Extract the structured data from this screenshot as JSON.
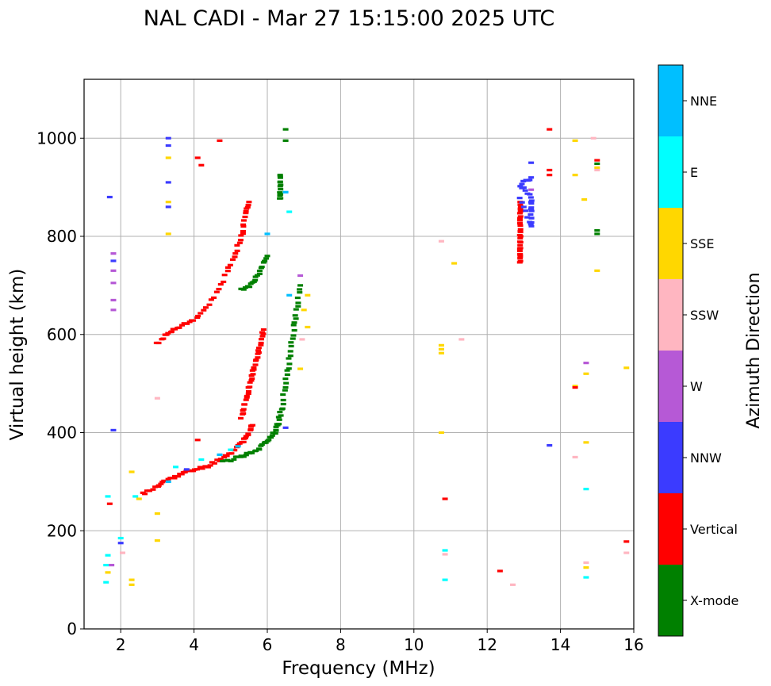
{
  "chart_data": {
    "type": "scatter",
    "title": "NAL CADI - Mar 27 15:15:00 2025 UTC",
    "xlabel": "Frequency (MHz)",
    "ylabel": "Virtual height (km)",
    "xlim": [
      1.0,
      16.0
    ],
    "ylim": [
      0,
      1120
    ],
    "xticks": [
      2,
      4,
      6,
      8,
      10,
      12,
      14,
      16
    ],
    "yticks": [
      0,
      200,
      400,
      600,
      800,
      1000
    ],
    "grid": true,
    "colorbar": {
      "label": "Azimuth Direction",
      "categories": [
        {
          "name": "X-mode",
          "color": "#008000"
        },
        {
          "name": "Vertical",
          "color": "#ff0000"
        },
        {
          "name": "NNW",
          "color": "#3b3bff"
        },
        {
          "name": "W",
          "color": "#b659d6"
        },
        {
          "name": "SSW",
          "color": "#ffb6c1"
        },
        {
          "name": "SSE",
          "color": "#ffd700"
        },
        {
          "name": "E",
          "color": "#00ffff"
        },
        {
          "name": "NNE",
          "color": "#00bfff"
        }
      ]
    },
    "traces": [
      {
        "name": "Vertical",
        "color": "#ff0000",
        "spread": 0.05,
        "x": [
          2.6,
          3.0,
          3.3,
          3.6,
          3.9,
          4.3,
          4.7,
          5.0,
          5.3,
          5.5,
          5.6
        ],
        "y": [
          275,
          290,
          305,
          315,
          322,
          330,
          345,
          360,
          380,
          400,
          415
        ]
      },
      {
        "name": "Vertical",
        "color": "#ff0000",
        "spread": 0.05,
        "x": [
          5.3,
          5.4,
          5.5,
          5.6,
          5.7,
          5.8,
          5.9
        ],
        "y": [
          430,
          460,
          490,
          520,
          550,
          580,
          610
        ]
      },
      {
        "name": "Vertical",
        "color": "#ff0000",
        "spread": 0.05,
        "x": [
          3.0,
          3.3,
          3.6,
          4.0,
          4.4,
          4.8,
          5.1,
          5.3,
          5.4,
          5.5
        ],
        "y": [
          580,
          605,
          615,
          630,
          660,
          710,
          760,
          800,
          840,
          870
        ]
      },
      {
        "name": "X-mode",
        "color": "#008000",
        "spread": 0.05,
        "x": [
          4.8,
          5.2,
          5.5,
          5.8,
          6.0,
          6.2,
          6.3,
          6.4,
          6.5,
          6.6,
          6.7,
          6.8,
          6.9
        ],
        "y": [
          340,
          350,
          358,
          368,
          385,
          400,
          420,
          450,
          500,
          550,
          600,
          650,
          700
        ]
      },
      {
        "name": "X-mode",
        "color": "#008000",
        "spread": 0.05,
        "x": [
          5.3,
          5.6,
          5.8,
          6.0
        ],
        "y": [
          690,
          705,
          730,
          760
        ]
      },
      {
        "name": "X-mode",
        "color": "#008000",
        "spread": 0.03,
        "x": [
          6.35,
          6.35,
          6.35
        ],
        "y": [
          875,
          900,
          925
        ]
      },
      {
        "name": "Vertical",
        "color": "#ff0000",
        "spread": 0.03,
        "x": [
          12.9,
          12.9,
          12.9,
          12.9,
          12.9,
          12.9
        ],
        "y": [
          745,
          770,
          795,
          820,
          845,
          870
        ]
      },
      {
        "name": "NNW",
        "color": "#3b3bff",
        "spread": 0.03,
        "x": [
          12.9,
          13.2,
          13.2,
          13.2,
          12.9,
          13.2
        ],
        "y": [
          880,
          820,
          850,
          880,
          905,
          920
        ]
      }
    ],
    "points": [
      {
        "name": "E",
        "x": 1.6,
        "y": 95
      },
      {
        "name": "E",
        "x": 1.6,
        "y": 130
      },
      {
        "name": "SSE",
        "x": 1.65,
        "y": 115
      },
      {
        "name": "E",
        "x": 1.65,
        "y": 150
      },
      {
        "name": "W",
        "x": 1.75,
        "y": 130
      },
      {
        "name": "E",
        "x": 1.65,
        "y": 270
      },
      {
        "name": "Vertical",
        "x": 1.7,
        "y": 255
      },
      {
        "name": "E",
        "x": 2.0,
        "y": 185
      },
      {
        "name": "NNW",
        "x": 2.0,
        "y": 175
      },
      {
        "name": "SSW",
        "x": 2.05,
        "y": 155
      },
      {
        "name": "SSE",
        "x": 2.3,
        "y": 90
      },
      {
        "name": "SSE",
        "x": 2.3,
        "y": 100
      },
      {
        "name": "SSE",
        "x": 2.3,
        "y": 320
      },
      {
        "name": "E",
        "x": 2.4,
        "y": 270
      },
      {
        "name": "SSE",
        "x": 2.5,
        "y": 265
      },
      {
        "name": "NNE",
        "x": 3.3,
        "y": 300
      },
      {
        "name": "E",
        "x": 3.5,
        "y": 330
      },
      {
        "name": "NNW",
        "x": 3.8,
        "y": 325
      },
      {
        "name": "E",
        "x": 4.2,
        "y": 345
      },
      {
        "name": "NNE",
        "x": 4.7,
        "y": 355
      },
      {
        "name": "E",
        "x": 5.0,
        "y": 365
      },
      {
        "name": "NNE",
        "x": 5.2,
        "y": 372
      },
      {
        "name": "Vertical",
        "x": 4.1,
        "y": 385
      },
      {
        "name": "SSW",
        "x": 3.0,
        "y": 470
      },
      {
        "name": "SSE",
        "x": 3.0,
        "y": 235
      },
      {
        "name": "SSE",
        "x": 3.0,
        "y": 180
      },
      {
        "name": "NNW",
        "x": 1.8,
        "y": 405
      },
      {
        "name": "W",
        "x": 1.8,
        "y": 650
      },
      {
        "name": "W",
        "x": 1.8,
        "y": 670
      },
      {
        "name": "W",
        "x": 1.8,
        "y": 705
      },
      {
        "name": "W",
        "x": 1.8,
        "y": 730
      },
      {
        "name": "NNW",
        "x": 1.8,
        "y": 750
      },
      {
        "name": "W",
        "x": 1.8,
        "y": 765
      },
      {
        "name": "NNW",
        "x": 1.7,
        "y": 880
      },
      {
        "name": "NNW",
        "x": 3.3,
        "y": 860
      },
      {
        "name": "SSE",
        "x": 3.3,
        "y": 870
      },
      {
        "name": "NNW",
        "x": 3.3,
        "y": 910
      },
      {
        "name": "SSE",
        "x": 3.3,
        "y": 960
      },
      {
        "name": "NNW",
        "x": 3.3,
        "y": 985
      },
      {
        "name": "NNW",
        "x": 3.3,
        "y": 1000
      },
      {
        "name": "SSE",
        "x": 3.3,
        "y": 805
      },
      {
        "name": "Vertical",
        "x": 4.1,
        "y": 960
      },
      {
        "name": "Vertical",
        "x": 4.2,
        "y": 945
      },
      {
        "name": "Vertical",
        "x": 4.7,
        "y": 995
      },
      {
        "name": "X-mode",
        "x": 6.5,
        "y": 995
      },
      {
        "name": "X-mode",
        "x": 6.5,
        "y": 1018
      },
      {
        "name": "NNE",
        "x": 6.0,
        "y": 805
      },
      {
        "name": "NNE",
        "x": 6.5,
        "y": 890
      },
      {
        "name": "E",
        "x": 6.6,
        "y": 850
      },
      {
        "name": "NNE",
        "x": 6.6,
        "y": 680
      },
      {
        "name": "W",
        "x": 6.9,
        "y": 720
      },
      {
        "name": "SSE",
        "x": 7.1,
        "y": 680
      },
      {
        "name": "SSE",
        "x": 7.0,
        "y": 650
      },
      {
        "name": "SSE",
        "x": 6.9,
        "y": 530
      },
      {
        "name": "SSW",
        "x": 6.95,
        "y": 590
      },
      {
        "name": "SSE",
        "x": 7.1,
        "y": 615
      },
      {
        "name": "NNW",
        "x": 6.5,
        "y": 410
      },
      {
        "name": "SSW",
        "x": 10.75,
        "y": 790
      },
      {
        "name": "SSE",
        "x": 10.75,
        "y": 578
      },
      {
        "name": "SSE",
        "x": 10.75,
        "y": 570
      },
      {
        "name": "SSE",
        "x": 10.75,
        "y": 562
      },
      {
        "name": "SSE",
        "x": 10.75,
        "y": 400
      },
      {
        "name": "Vertical",
        "x": 10.85,
        "y": 265
      },
      {
        "name": "E",
        "x": 10.85,
        "y": 160
      },
      {
        "name": "SSW",
        "x": 10.85,
        "y": 152
      },
      {
        "name": "E",
        "x": 10.85,
        "y": 100
      },
      {
        "name": "SSE",
        "x": 11.1,
        "y": 745
      },
      {
        "name": "SSW",
        "x": 11.3,
        "y": 590
      },
      {
        "name": "Vertical",
        "x": 12.35,
        "y": 118
      },
      {
        "name": "SSW",
        "x": 12.7,
        "y": 90
      },
      {
        "name": "Vertical",
        "x": 13.7,
        "y": 1018
      },
      {
        "name": "Vertical",
        "x": 13.7,
        "y": 935
      },
      {
        "name": "Vertical",
        "x": 13.7,
        "y": 925
      },
      {
        "name": "NNW",
        "x": 13.2,
        "y": 950
      },
      {
        "name": "W",
        "x": 13.2,
        "y": 895
      },
      {
        "name": "NNW",
        "x": 13.7,
        "y": 374
      },
      {
        "name": "SSE",
        "x": 14.4,
        "y": 995
      },
      {
        "name": "SSE",
        "x": 14.4,
        "y": 925
      },
      {
        "name": "SSE",
        "x": 14.65,
        "y": 875
      },
      {
        "name": "SSW",
        "x": 14.9,
        "y": 1000
      },
      {
        "name": "Vertical",
        "x": 15.0,
        "y": 955
      },
      {
        "name": "X-mode",
        "x": 15.0,
        "y": 948
      },
      {
        "name": "SSE",
        "x": 15.0,
        "y": 940
      },
      {
        "name": "SSW",
        "x": 15.0,
        "y": 935
      },
      {
        "name": "X-mode",
        "x": 15.0,
        "y": 812
      },
      {
        "name": "X-mode",
        "x": 15.0,
        "y": 805
      },
      {
        "name": "SSE",
        "x": 15.0,
        "y": 730
      },
      {
        "name": "W",
        "x": 14.7,
        "y": 542
      },
      {
        "name": "SSE",
        "x": 14.7,
        "y": 520
      },
      {
        "name": "SSE",
        "x": 14.4,
        "y": 495
      },
      {
        "name": "Vertical",
        "x": 14.4,
        "y": 492
      },
      {
        "name": "SSE",
        "x": 14.7,
        "y": 380
      },
      {
        "name": "SSW",
        "x": 14.4,
        "y": 350
      },
      {
        "name": "E",
        "x": 14.7,
        "y": 285
      },
      {
        "name": "SSW",
        "x": 14.7,
        "y": 135
      },
      {
        "name": "SSE",
        "x": 14.7,
        "y": 125
      },
      {
        "name": "E",
        "x": 14.7,
        "y": 105
      },
      {
        "name": "SSE",
        "x": 15.8,
        "y": 532
      },
      {
        "name": "Vertical",
        "x": 15.8,
        "y": 178
      },
      {
        "name": "SSW",
        "x": 15.8,
        "y": 155
      }
    ]
  }
}
